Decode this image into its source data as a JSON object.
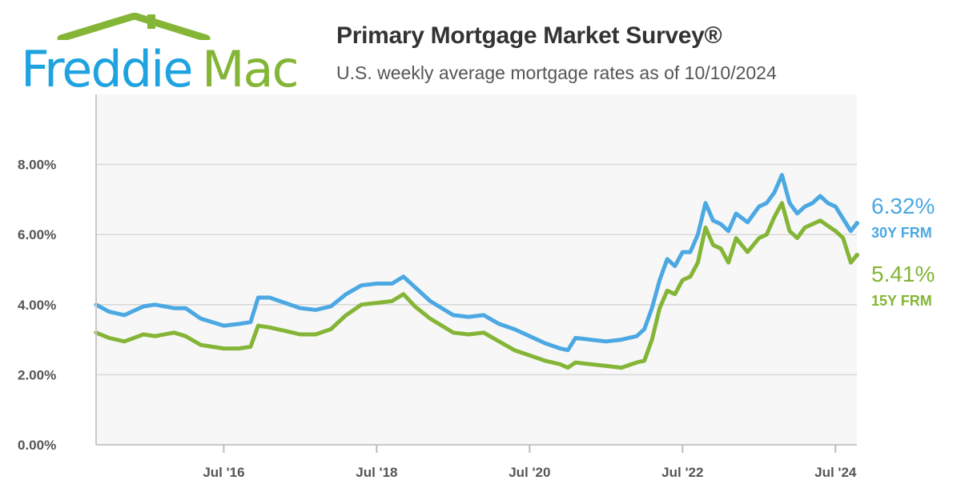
{
  "logo": {
    "word1": "Freddie",
    "word2": "Mac"
  },
  "header": {
    "title": "Primary Mortgage Market Survey®",
    "subtitle": "U.S. weekly average mortgage rates as of 10/10/2024"
  },
  "colors": {
    "blue": "#4ba8e2",
    "green": "#84b536",
    "grid": "#d8d8d8",
    "plot_bg": "#f7f7f7"
  },
  "chart_data": {
    "type": "line",
    "title": "Primary Mortgage Market Survey®",
    "subtitle": "U.S. weekly average mortgage rates as of 10/10/2024",
    "xlabel": "",
    "ylabel": "",
    "xlim": [
      2014.83,
      2024.78
    ],
    "ylim": [
      0,
      10
    ],
    "y_ticks": [
      0,
      2,
      4,
      6,
      8
    ],
    "y_tick_labels": [
      "0.00%",
      "2.00%",
      "4.00%",
      "6.00%",
      "8.00%"
    ],
    "x_ticks": [
      2016.5,
      2018.5,
      2020.5,
      2022.5,
      2024.5
    ],
    "x_tick_labels": [
      "Jul '16",
      "Jul '18",
      "Jul '20",
      "Jul '22",
      "Jul '24"
    ],
    "grid": true,
    "series": [
      {
        "name": "30Y FRM",
        "end_label": "6.32%",
        "color": "#4ba8e2",
        "x": [
          2014.83,
          2015.0,
          2015.2,
          2015.45,
          2015.6,
          2015.85,
          2016.0,
          2016.2,
          2016.5,
          2016.7,
          2016.85,
          2016.95,
          2017.1,
          2017.3,
          2017.5,
          2017.7,
          2017.9,
          2018.1,
          2018.3,
          2018.5,
          2018.7,
          2018.85,
          2019.0,
          2019.2,
          2019.5,
          2019.7,
          2019.9,
          2020.1,
          2020.3,
          2020.5,
          2020.7,
          2020.9,
          2021.0,
          2021.1,
          2021.3,
          2021.5,
          2021.7,
          2021.9,
          2022.0,
          2022.1,
          2022.2,
          2022.3,
          2022.4,
          2022.5,
          2022.6,
          2022.7,
          2022.8,
          2022.9,
          2023.0,
          2023.1,
          2023.2,
          2023.35,
          2023.5,
          2023.6,
          2023.7,
          2023.8,
          2023.9,
          2024.0,
          2024.1,
          2024.2,
          2024.3,
          2024.4,
          2024.5,
          2024.6,
          2024.7,
          2024.78
        ],
        "y": [
          4.0,
          3.8,
          3.7,
          3.95,
          4.0,
          3.9,
          3.9,
          3.6,
          3.4,
          3.45,
          3.5,
          4.2,
          4.2,
          4.05,
          3.9,
          3.85,
          3.95,
          4.3,
          4.55,
          4.6,
          4.6,
          4.8,
          4.5,
          4.1,
          3.7,
          3.65,
          3.7,
          3.45,
          3.3,
          3.1,
          2.9,
          2.75,
          2.7,
          3.05,
          3.0,
          2.95,
          3.0,
          3.1,
          3.3,
          3.9,
          4.7,
          5.3,
          5.1,
          5.5,
          5.5,
          6.0,
          6.9,
          6.4,
          6.3,
          6.1,
          6.6,
          6.35,
          6.8,
          6.9,
          7.2,
          7.7,
          6.9,
          6.6,
          6.8,
          6.9,
          7.1,
          6.9,
          6.8,
          6.45,
          6.1,
          6.32
        ]
      },
      {
        "name": "15Y FRM",
        "end_label": "5.41%",
        "color": "#84b536",
        "x": [
          2014.83,
          2015.0,
          2015.2,
          2015.45,
          2015.6,
          2015.85,
          2016.0,
          2016.2,
          2016.5,
          2016.7,
          2016.85,
          2016.95,
          2017.1,
          2017.3,
          2017.5,
          2017.7,
          2017.9,
          2018.1,
          2018.3,
          2018.5,
          2018.7,
          2018.85,
          2019.0,
          2019.2,
          2019.5,
          2019.7,
          2019.9,
          2020.1,
          2020.3,
          2020.5,
          2020.7,
          2020.9,
          2021.0,
          2021.1,
          2021.3,
          2021.5,
          2021.7,
          2021.9,
          2022.0,
          2022.1,
          2022.2,
          2022.3,
          2022.4,
          2022.5,
          2022.6,
          2022.7,
          2022.8,
          2022.9,
          2023.0,
          2023.1,
          2023.2,
          2023.35,
          2023.5,
          2023.6,
          2023.7,
          2023.8,
          2023.9,
          2024.0,
          2024.1,
          2024.2,
          2024.3,
          2024.4,
          2024.5,
          2024.6,
          2024.7,
          2024.78
        ],
        "y": [
          3.2,
          3.05,
          2.95,
          3.15,
          3.1,
          3.2,
          3.1,
          2.85,
          2.75,
          2.75,
          2.8,
          3.4,
          3.35,
          3.25,
          3.15,
          3.15,
          3.3,
          3.7,
          4.0,
          4.05,
          4.1,
          4.3,
          3.95,
          3.6,
          3.2,
          3.15,
          3.2,
          2.95,
          2.7,
          2.55,
          2.4,
          2.3,
          2.2,
          2.35,
          2.3,
          2.25,
          2.2,
          2.35,
          2.4,
          3.0,
          3.9,
          4.4,
          4.3,
          4.7,
          4.8,
          5.2,
          6.2,
          5.7,
          5.6,
          5.2,
          5.9,
          5.5,
          5.9,
          6.0,
          6.5,
          6.9,
          6.1,
          5.9,
          6.2,
          6.3,
          6.4,
          6.25,
          6.1,
          5.9,
          5.2,
          5.41
        ]
      }
    ]
  }
}
